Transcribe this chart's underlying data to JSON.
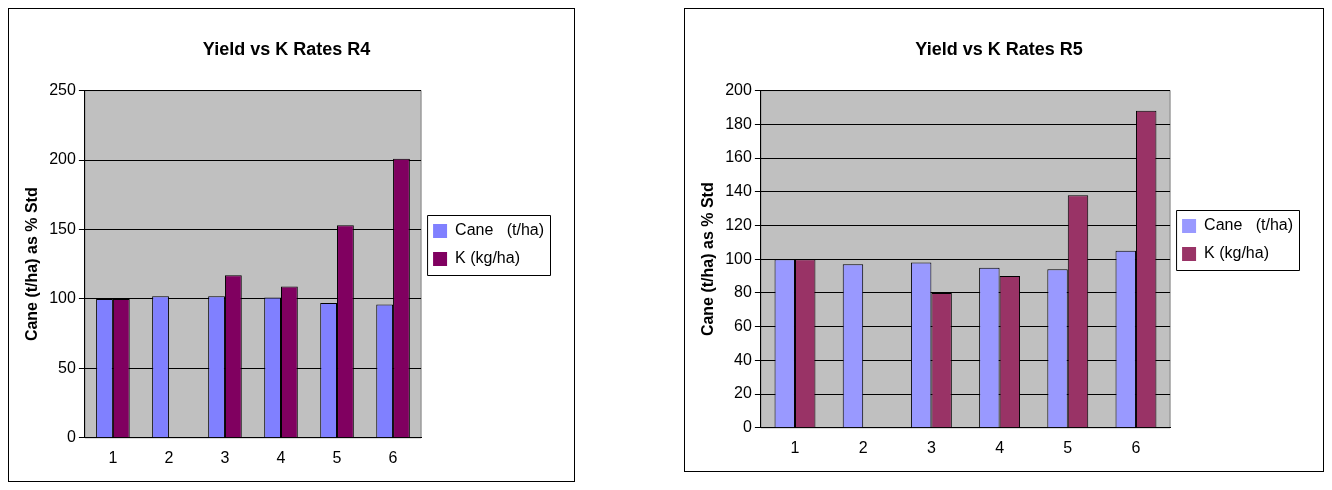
{
  "chart_data": [
    {
      "type": "bar",
      "title": "Yield vs K Rates R4",
      "ylabel": "Cane (t/ha) as % Std",
      "categories": [
        "1",
        "2",
        "3",
        "4",
        "5",
        "6"
      ],
      "series": [
        {
          "name": "Cane   (t/ha)",
          "color": "#8080ff",
          "values": [
            100,
            102,
            102,
            101,
            97,
            96
          ]
        },
        {
          "name": "K (kg/ha)",
          "color": "#800060",
          "values": [
            100,
            null,
            117,
            109,
            153,
            201
          ]
        }
      ],
      "ylim": [
        0,
        250
      ],
      "yticks": [
        0,
        50,
        100,
        150,
        200,
        250
      ],
      "grid": "y",
      "legend": "right"
    },
    {
      "type": "bar",
      "title": "Yield vs K Rates R5",
      "ylabel": "Cane (t/ha) as % Std",
      "categories": [
        "1",
        "2",
        "3",
        "4",
        "5",
        "6"
      ],
      "series": [
        {
          "name": "Cane   (t/ha)",
          "color": "#9999ff",
          "values": [
            100,
            97,
            98,
            95,
            94,
            105
          ]
        },
        {
          "name": "K (kg/ha)",
          "color": "#993366",
          "values": [
            100,
            null,
            80,
            90,
            138,
            188
          ]
        }
      ],
      "ylim": [
        0,
        200
      ],
      "yticks": [
        0,
        20,
        40,
        60,
        80,
        100,
        120,
        140,
        160,
        180,
        200
      ],
      "grid": "y",
      "legend": "right"
    }
  ]
}
